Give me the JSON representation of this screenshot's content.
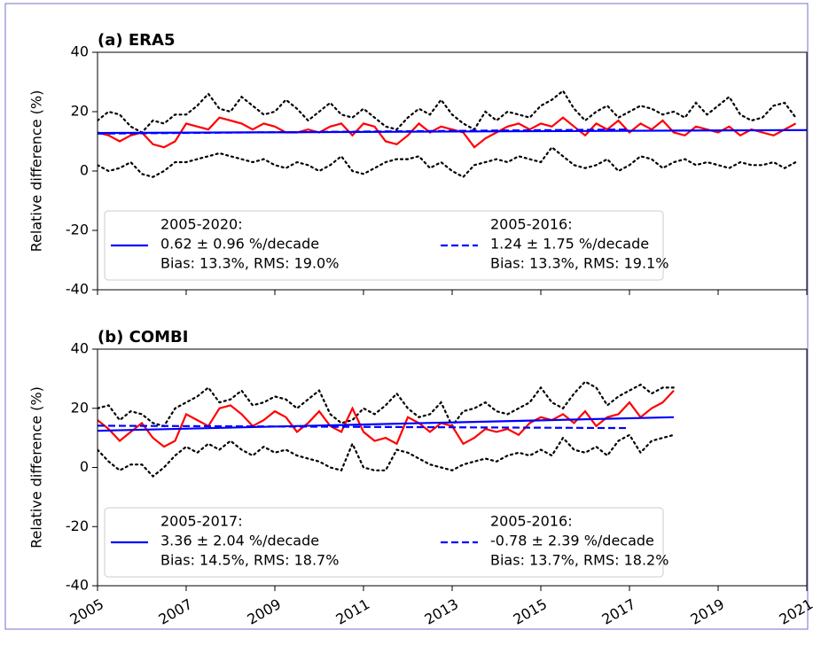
{
  "chart_data": [
    {
      "type": "line",
      "title": "(a) ERA5",
      "ylabel": "Relative difference (%)",
      "xlim": [
        2005,
        2021
      ],
      "xticks": [
        2005,
        2007,
        2009,
        2011,
        2013,
        2015,
        2017,
        2019,
        2021
      ],
      "show_xticklabels": false,
      "ylim": [
        -40,
        40
      ],
      "yticks": [
        -40,
        -20,
        0,
        20,
        40
      ],
      "x": [
        2005,
        2005.25,
        2005.5,
        2005.75,
        2006,
        2006.25,
        2006.5,
        2006.75,
        2007,
        2007.25,
        2007.5,
        2007.75,
        2008,
        2008.25,
        2008.5,
        2008.75,
        2009,
        2009.25,
        2009.5,
        2009.75,
        2010,
        2010.25,
        2010.5,
        2010.75,
        2011,
        2011.25,
        2011.5,
        2011.75,
        2012,
        2012.25,
        2012.5,
        2012.75,
        2013,
        2013.25,
        2013.5,
        2013.75,
        2014,
        2014.25,
        2014.5,
        2014.75,
        2015,
        2015.25,
        2015.5,
        2015.75,
        2016,
        2016.25,
        2016.5,
        2016.75,
        2017,
        2017.25,
        2017.5,
        2017.75,
        2018,
        2018.25,
        2018.5,
        2018.75,
        2019,
        2019.25,
        2019.5,
        2019.75,
        2020,
        2020.25,
        2020.5,
        2020.75
      ],
      "series": [
        {
          "color": "#000000",
          "style": "dotted",
          "values": [
            17,
            20,
            19,
            15,
            13,
            17,
            16,
            19,
            19,
            22,
            26,
            21,
            20,
            25,
            22,
            19,
            20,
            24,
            21,
            17,
            20,
            23,
            19,
            18,
            21,
            18,
            15,
            14,
            18,
            21,
            19,
            24,
            19,
            16,
            14,
            20,
            17,
            20,
            19,
            18,
            22,
            24,
            27,
            21,
            17,
            20,
            22,
            18,
            20,
            22,
            21,
            19,
            20,
            18,
            23,
            19,
            22,
            25,
            19,
            17,
            18,
            22,
            23,
            18
          ]
        },
        {
          "color": "#000000",
          "style": "dotted",
          "values": [
            2,
            0,
            1,
            3,
            -1,
            -2,
            0,
            3,
            3,
            4,
            5,
            6,
            5,
            4,
            3,
            4,
            2,
            1,
            3,
            2,
            0,
            2,
            5,
            0,
            -1,
            1,
            3,
            4,
            4,
            5,
            1,
            3,
            0,
            -2,
            2,
            3,
            4,
            3,
            5,
            4,
            3,
            8,
            5,
            2,
            1,
            2,
            4,
            0,
            2,
            5,
            4,
            1,
            3,
            4,
            2,
            3,
            2,
            1,
            3,
            2,
            2,
            3,
            1,
            3
          ]
        },
        {
          "color": "#ff0000",
          "style": "solid",
          "values": [
            13,
            12,
            10,
            12,
            13,
            9,
            8,
            10,
            16,
            15,
            14,
            18,
            17,
            16,
            14,
            16,
            15,
            13,
            13,
            14,
            13,
            15,
            16,
            12,
            16,
            15,
            10,
            9,
            12,
            16,
            13,
            15,
            14,
            13,
            8,
            11,
            13,
            15,
            16,
            14,
            16,
            15,
            18,
            15,
            12,
            16,
            14,
            17,
            13,
            16,
            14,
            17,
            13,
            12,
            15,
            14,
            13,
            15,
            12,
            14,
            13,
            12,
            14,
            16
          ]
        },
        {
          "name": [
            "2005-2020:",
            "0.62 ± 0.96 %/decade",
            "Bias: 13.3%, RMS: 19.0%"
          ],
          "color": "#0000ff",
          "style": "solid",
          "x": [
            2005,
            2021
          ],
          "values": [
            12.8,
            13.8
          ]
        },
        {
          "name": [
            "2005-2016:",
            "1.24 ± 1.75 %/decade",
            "Bias: 13.3%, RMS: 19.1%"
          ],
          "color": "#0000ff",
          "style": "dashed",
          "x": [
            2005,
            2017
          ],
          "values": [
            12.6,
            14.0
          ]
        }
      ]
    },
    {
      "type": "line",
      "title": "(b) COMBI",
      "ylabel": "Relative difference (%)",
      "xlim": [
        2005,
        2021
      ],
      "xticks": [
        2005,
        2007,
        2009,
        2011,
        2013,
        2015,
        2017,
        2019,
        2021
      ],
      "show_xticklabels": true,
      "ylim": [
        -40,
        40
      ],
      "yticks": [
        -40,
        -20,
        0,
        20,
        40
      ],
      "x": [
        2005,
        2005.25,
        2005.5,
        2005.75,
        2006,
        2006.25,
        2006.5,
        2006.75,
        2007,
        2007.25,
        2007.5,
        2007.75,
        2008,
        2008.25,
        2008.5,
        2008.75,
        2009,
        2009.25,
        2009.5,
        2009.75,
        2010,
        2010.25,
        2010.5,
        2010.75,
        2011,
        2011.25,
        2011.5,
        2011.75,
        2012,
        2012.25,
        2012.5,
        2012.75,
        2013,
        2013.25,
        2013.5,
        2013.75,
        2014,
        2014.25,
        2014.5,
        2014.75,
        2015,
        2015.25,
        2015.5,
        2015.75,
        2016,
        2016.25,
        2016.5,
        2016.75,
        2017,
        2017.25,
        2017.5,
        2017.75,
        2018
      ],
      "series": [
        {
          "color": "#000000",
          "style": "dotted",
          "values": [
            20,
            21,
            16,
            19,
            18,
            15,
            14,
            20,
            22,
            24,
            27,
            22,
            23,
            26,
            21,
            22,
            24,
            23,
            20,
            23,
            26,
            18,
            15,
            16,
            20,
            18,
            21,
            25,
            20,
            17,
            18,
            22,
            14,
            19,
            20,
            22,
            19,
            18,
            20,
            22,
            27,
            22,
            20,
            25,
            29,
            27,
            21,
            24,
            26,
            28,
            25,
            27,
            27
          ]
        },
        {
          "color": "#000000",
          "style": "dotted",
          "values": [
            6,
            2,
            -1,
            1,
            1,
            -3,
            0,
            4,
            7,
            5,
            8,
            6,
            9,
            6,
            4,
            7,
            5,
            6,
            4,
            3,
            2,
            0,
            -1,
            8,
            0,
            -1,
            -1,
            6,
            5,
            3,
            1,
            0,
            -1,
            1,
            2,
            3,
            2,
            4,
            5,
            4,
            6,
            4,
            10,
            6,
            5,
            7,
            4,
            9,
            11,
            5,
            9,
            10,
            11
          ]
        },
        {
          "color": "#ff0000",
          "style": "solid",
          "values": [
            16,
            13,
            9,
            12,
            15,
            10,
            7,
            9,
            18,
            16,
            14,
            20,
            21,
            18,
            14,
            16,
            19,
            17,
            12,
            15,
            19,
            14,
            12,
            20,
            12,
            9,
            10,
            8,
            17,
            15,
            12,
            15,
            14,
            8,
            10,
            13,
            12,
            13,
            11,
            15,
            17,
            16,
            18,
            15,
            19,
            14,
            17,
            18,
            22,
            17,
            20,
            22,
            26
          ]
        },
        {
          "name": [
            "2005-2017:",
            "3.36 ± 2.04 %/decade",
            "Bias: 14.5%, RMS: 18.7%"
          ],
          "color": "#0000ff",
          "style": "solid",
          "x": [
            2005,
            2018
          ],
          "values": [
            12.4,
            17.0
          ]
        },
        {
          "name": [
            "2005-2016:",
            "-0.78 ± 2.39 %/decade",
            "Bias: 13.7%, RMS: 18.2%"
          ],
          "color": "#0000ff",
          "style": "dashed",
          "x": [
            2005,
            2017
          ],
          "values": [
            14.1,
            13.3
          ]
        }
      ]
    }
  ]
}
